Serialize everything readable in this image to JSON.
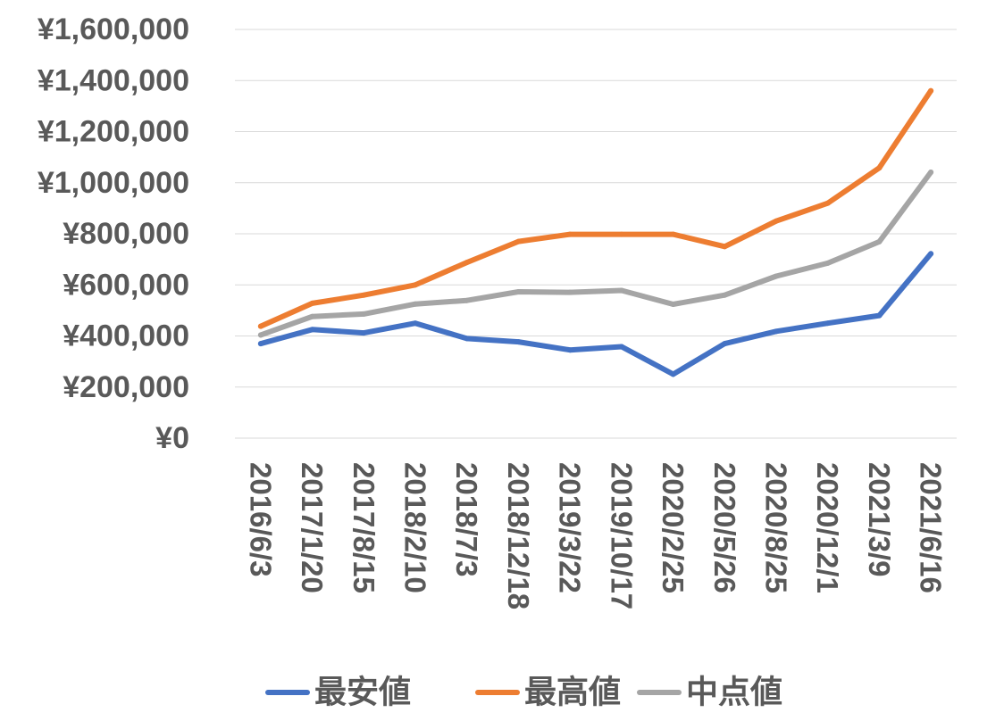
{
  "chart_data": {
    "type": "line",
    "title": "",
    "xlabel": "",
    "ylabel": "",
    "ylim": [
      0,
      1600000
    ],
    "yticks": [
      "¥0",
      "¥200,000",
      "¥400,000",
      "¥600,000",
      "¥800,000",
      "¥1,000,000",
      "¥1,200,000",
      "¥1,400,000",
      "¥1,600,000"
    ],
    "ytick_values": [
      0,
      200000,
      400000,
      600000,
      800000,
      1000000,
      1200000,
      1400000,
      1600000
    ],
    "categories": [
      "2016/6/3",
      "2017/1/20",
      "2017/8/15",
      "2018/2/10",
      "2018/7/3",
      "2018/12/18",
      "2019/3/22",
      "2019/10/17",
      "2020/2/25",
      "2020/5/26",
      "2020/8/25",
      "2020/12/1",
      "2021/3/9",
      "2021/6/16"
    ],
    "grid": true,
    "legend_position": "bottom",
    "series": [
      {
        "name": "最安値",
        "color": "#4472C4",
        "values": [
          370000,
          425000,
          412000,
          450000,
          390000,
          377000,
          345000,
          358000,
          250000,
          370000,
          418000,
          450000,
          480000,
          722000
        ]
      },
      {
        "name": "最高値",
        "color": "#ED7D31",
        "values": [
          438000,
          528000,
          560000,
          600000,
          688000,
          770000,
          798000,
          798000,
          798000,
          750000,
          850000,
          920000,
          1058000,
          1360000
        ]
      },
      {
        "name": "中点値",
        "color": "#A5A5A5",
        "values": [
          404000,
          476000,
          486000,
          525000,
          539000,
          573000,
          571000,
          578000,
          524000,
          560000,
          634000,
          685000,
          769000,
          1041000
        ]
      }
    ]
  }
}
